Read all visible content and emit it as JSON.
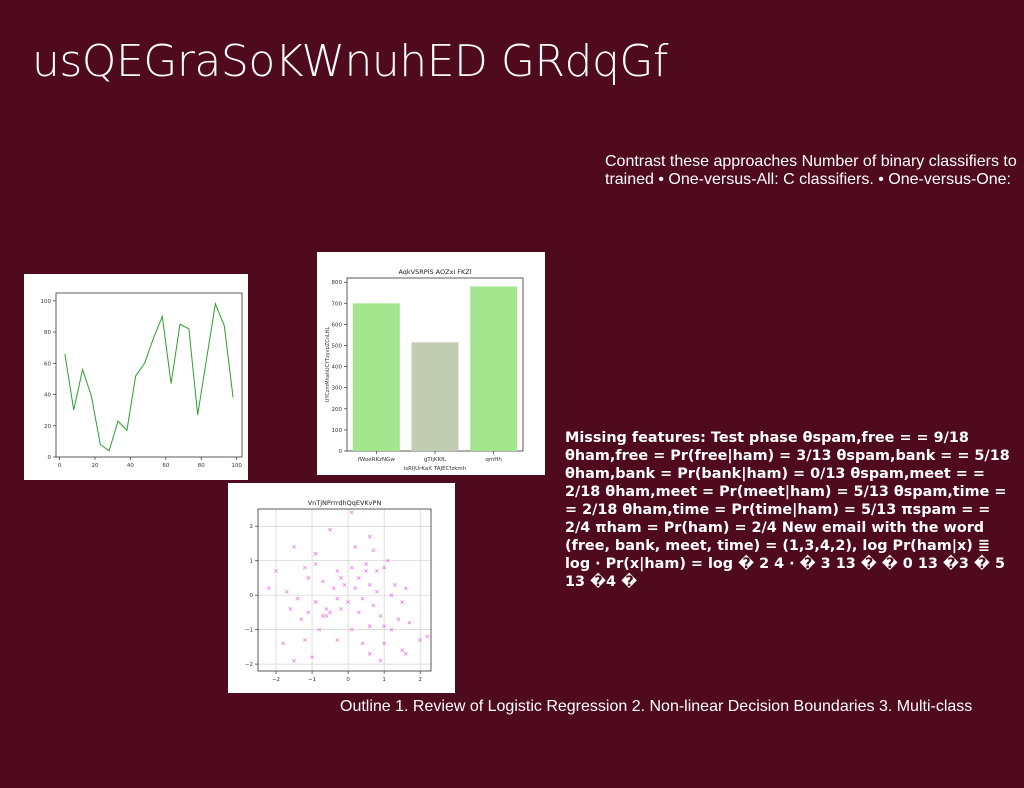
{
  "slide": {
    "title": "usQEGraSoKWnuhED GRdqGf",
    "contrast_text": "Contrast these approaches Number of binary classifiers to trained • One-versus-All: C classifiers. • One-versus-One:",
    "missing_text": "Missing features: Test phase θspam,free = = 9/18 θham,free = Pr(free|ham) = 3/13 θspam,bank = = 5/18 θham,bank = Pr(bank|ham) = 0/13 θspam,meet = = 2/18 θham,meet = Pr(meet|ham) = 5/13 θspam,time = = 2/18 θham,time = Pr(time|ham) = 5/13 πspam = = 2/4 πham = Pr(ham) = 2/4 New email with the word (free, bank, meet, time) = (1,3,4,2), log Pr(ham|x) ≣ log ⋅ Pr(x|ham) = log � 2 4 ⋅ � 3 13 � � 0 13 �3 � 5 13 �4 �",
    "outline_text": "Outline 1. Review of Logistic Regression 2. Non-linear Decision Boundaries 3. Multi-class"
  },
  "chart_data": [
    {
      "type": "line",
      "title": "",
      "color": "#2ca02c",
      "x": [
        3,
        8,
        13,
        18,
        23,
        28,
        33,
        38,
        43,
        48,
        53,
        58,
        63,
        68,
        73,
        78,
        83,
        88,
        93,
        98
      ],
      "y": [
        66,
        30,
        56,
        39,
        8,
        4,
        23,
        17,
        52,
        60,
        76,
        90,
        47,
        85,
        82,
        27,
        63,
        98,
        84,
        38
      ],
      "xlim": [
        -2,
        103
      ],
      "ylim": [
        0,
        105
      ],
      "xticks": [
        0,
        20,
        40,
        60,
        80,
        100
      ],
      "yticks": [
        0,
        20,
        40,
        60,
        80,
        100
      ],
      "grid": false
    },
    {
      "type": "bar",
      "title": "AqkVSRPlS AOZxi FKZl",
      "xlabel": "lsRIjUrKaX TAJECfzkmh",
      "ylabel": "UYCzmMhahUCYTzyvpZCnLHL",
      "categories": [
        "fWoeRKzNGw",
        "gTIjKKfL",
        "qmHh"
      ],
      "values": [
        700,
        515,
        780
      ],
      "colors": [
        "#a3e68d",
        "#c2ccb2",
        "#a3e68d"
      ],
      "ylim": [
        0,
        820
      ],
      "yticks": [
        0,
        100,
        200,
        300,
        400,
        500,
        600,
        700,
        800
      ],
      "grid": false
    },
    {
      "type": "scatter",
      "title": "VnTjNPrrrdhQqEVKvPN",
      "marker": "x",
      "color": "#ee82ee",
      "xlim": [
        -2.5,
        2.3
      ],
      "ylim": [
        -2.2,
        2.5
      ],
      "xticks": [
        -2,
        -1,
        0,
        1,
        2
      ],
      "yticks": [
        -2,
        -1,
        0,
        1,
        2
      ],
      "grid": true,
      "points": [
        [
          0.1,
          2.4
        ],
        [
          -0.5,
          1.9
        ],
        [
          0.6,
          1.7
        ],
        [
          -1.5,
          1.4
        ],
        [
          0.2,
          1.4
        ],
        [
          -0.9,
          1.2
        ],
        [
          0.7,
          1.3
        ],
        [
          1.1,
          1.0
        ],
        [
          -2.0,
          0.7
        ],
        [
          -1.2,
          0.8
        ],
        [
          -0.9,
          0.9
        ],
        [
          -0.3,
          0.7
        ],
        [
          0.1,
          0.8
        ],
        [
          0.5,
          0.7
        ],
        [
          0.8,
          0.7
        ],
        [
          1.0,
          0.8
        ],
        [
          -1.1,
          0.5
        ],
        [
          -0.7,
          0.4
        ],
        [
          -0.2,
          0.5
        ],
        [
          0.3,
          0.5
        ],
        [
          0.6,
          0.3
        ],
        [
          1.3,
          0.3
        ],
        [
          1.6,
          0.2
        ],
        [
          -2.2,
          0.2
        ],
        [
          -1.7,
          0.1
        ],
        [
          -0.4,
          0.2
        ],
        [
          -0.1,
          0.3
        ],
        [
          0.2,
          0.2
        ],
        [
          0.8,
          0.1
        ],
        [
          1.2,
          0.0
        ],
        [
          -1.4,
          -0.1
        ],
        [
          -0.9,
          -0.2
        ],
        [
          -0.3,
          -0.1
        ],
        [
          0.0,
          -0.2
        ],
        [
          0.4,
          -0.1
        ],
        [
          0.7,
          -0.3
        ],
        [
          1.5,
          -0.2
        ],
        [
          -1.6,
          -0.4
        ],
        [
          -1.1,
          -0.5
        ],
        [
          -0.6,
          -0.6
        ],
        [
          -0.2,
          -0.4
        ],
        [
          0.3,
          -0.5
        ],
        [
          0.9,
          -0.6
        ],
        [
          1.4,
          -0.7
        ],
        [
          -1.3,
          -0.7
        ],
        [
          -0.5,
          -0.5
        ],
        [
          0.6,
          -0.9
        ],
        [
          1.0,
          -0.9
        ],
        [
          1.7,
          -0.8
        ],
        [
          -0.8,
          -1.0
        ],
        [
          0.1,
          -1.0
        ],
        [
          1.2,
          -1.0
        ],
        [
          -1.8,
          -1.4
        ],
        [
          -1.2,
          -1.3
        ],
        [
          -0.3,
          -1.3
        ],
        [
          0.4,
          -1.4
        ],
        [
          1.0,
          -1.4
        ],
        [
          1.5,
          -1.6
        ],
        [
          2.0,
          -1.3
        ],
        [
          2.2,
          -1.2
        ],
        [
          -1.0,
          -1.8
        ],
        [
          0.6,
          -1.7
        ],
        [
          1.6,
          -1.7
        ],
        [
          -1.5,
          -1.9
        ],
        [
          0.9,
          -1.9
        ],
        [
          -0.6,
          -0.4
        ],
        [
          0.5,
          0.9
        ],
        [
          -0.7,
          -0.6
        ]
      ]
    }
  ]
}
